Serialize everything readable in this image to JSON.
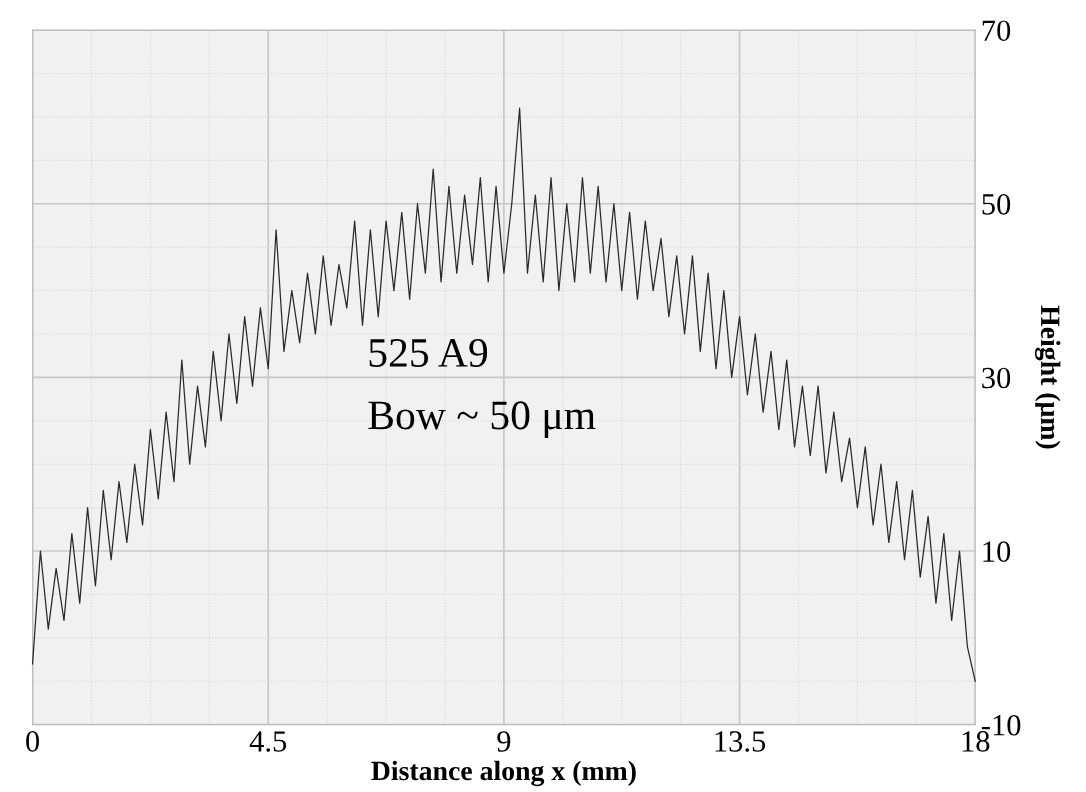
{
  "chart_data": {
    "type": "line",
    "xlabel": "Distance along x (mm)",
    "ylabel": "Height (μm)",
    "annotations": [
      "525 A9",
      "Bow ~ 50 μm"
    ],
    "xlim": [
      0,
      18
    ],
    "xticks": [
      0,
      4.5,
      9,
      13.5,
      18
    ],
    "ylim": [
      -10,
      70
    ],
    "yticks": [
      70,
      50,
      30,
      10,
      -10
    ],
    "grid": true,
    "marker": "none",
    "line_style": "solid",
    "series": [
      {
        "color": "#2a2a2a",
        "x": [
          0,
          0.15,
          0.3,
          0.45,
          0.6,
          0.75,
          0.9,
          1.05,
          1.2,
          1.35,
          1.5,
          1.65,
          1.8,
          1.95,
          2.1,
          2.25,
          2.4,
          2.55,
          2.7,
          2.85,
          3.0,
          3.15,
          3.3,
          3.45,
          3.6,
          3.75,
          3.9,
          4.05,
          4.2,
          4.35,
          4.5,
          4.65,
          4.8,
          4.95,
          5.1,
          5.25,
          5.4,
          5.55,
          5.7,
          5.85,
          6.0,
          6.15,
          6.3,
          6.45,
          6.6,
          6.75,
          6.9,
          7.05,
          7.2,
          7.35,
          7.5,
          7.65,
          7.8,
          7.95,
          8.1,
          8.25,
          8.4,
          8.55,
          8.7,
          8.85,
          9.0,
          9.15,
          9.3,
          9.45,
          9.6,
          9.75,
          9.9,
          10.05,
          10.2,
          10.35,
          10.5,
          10.65,
          10.8,
          10.95,
          11.1,
          11.25,
          11.4,
          11.55,
          11.7,
          11.85,
          12.0,
          12.15,
          12.3,
          12.45,
          12.6,
          12.75,
          12.9,
          13.05,
          13.2,
          13.35,
          13.5,
          13.65,
          13.8,
          13.95,
          14.1,
          14.25,
          14.4,
          14.55,
          14.7,
          14.85,
          15.0,
          15.15,
          15.3,
          15.45,
          15.6,
          15.75,
          15.9,
          16.05,
          16.2,
          16.35,
          16.5,
          16.65,
          16.8,
          16.95,
          17.1,
          17.25,
          17.4,
          17.55,
          17.7,
          17.85,
          18.0
        ],
        "values": [
          -3,
          10,
          1,
          8,
          2,
          12,
          4,
          15,
          6,
          17,
          9,
          18,
          11,
          20,
          13,
          24,
          16,
          26,
          18,
          32,
          20,
          29,
          22,
          33,
          25,
          35,
          27,
          37,
          29,
          38,
          31,
          47,
          33,
          40,
          34,
          42,
          35,
          44,
          36,
          43,
          38,
          48,
          36,
          47,
          37,
          48,
          40,
          49,
          39,
          50,
          42,
          54,
          41,
          52,
          42,
          51,
          43,
          53,
          41,
          52,
          42,
          50,
          61,
          42,
          51,
          41,
          53,
          40,
          50,
          41,
          53,
          42,
          52,
          41,
          50,
          40,
          49,
          39,
          48,
          40,
          46,
          37,
          44,
          35,
          44,
          33,
          42,
          31,
          40,
          30,
          37,
          28,
          35,
          26,
          33,
          24,
          32,
          22,
          29,
          21,
          29,
          19,
          26,
          18,
          23,
          15,
          22,
          13,
          20,
          11,
          18,
          9,
          17,
          7,
          14,
          4,
          12,
          2,
          10,
          -1,
          -5
        ]
      }
    ]
  }
}
